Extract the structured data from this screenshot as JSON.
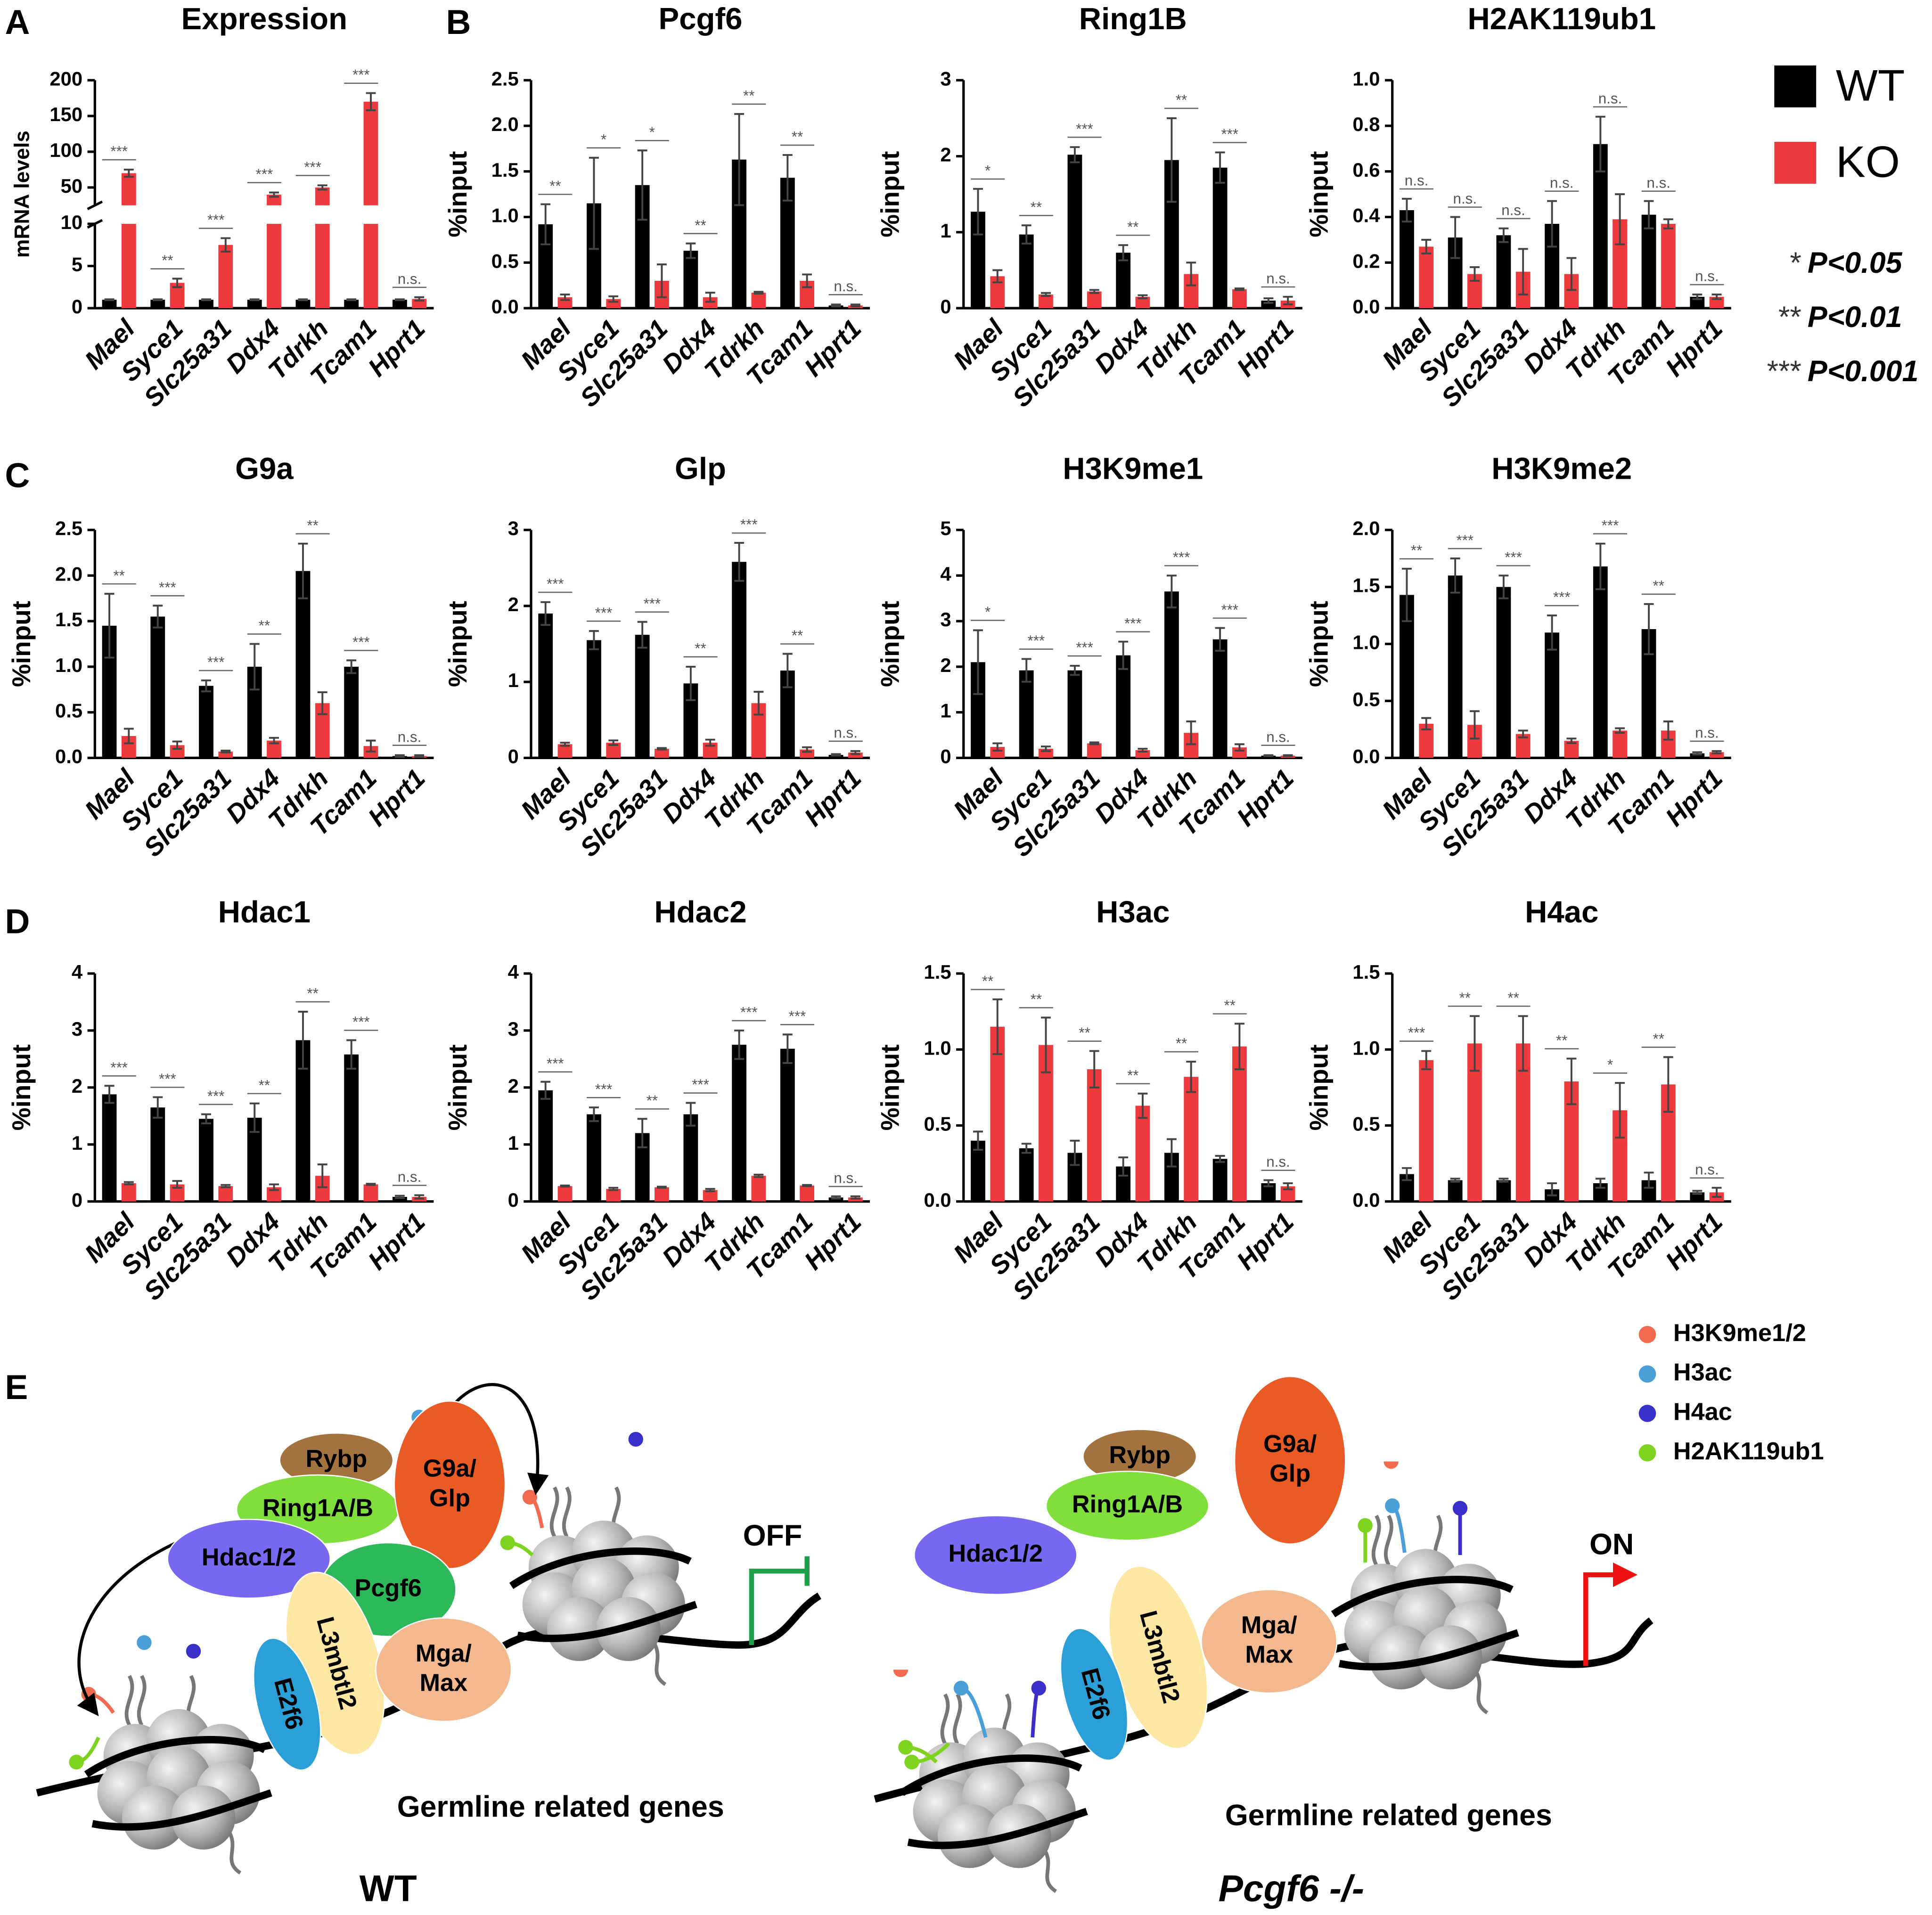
{
  "panel_labels": [
    "A",
    "B",
    "C",
    "D",
    "E"
  ],
  "significance_legend": [
    {
      "stars": "*",
      "label": "P<0.05"
    },
    {
      "stars": "**",
      "label": "P<0.01"
    },
    {
      "stars": "***",
      "label": "P<0.001"
    }
  ],
  "chart_data": [
    {
      "type": "bar",
      "title": "Expression",
      "ylabel": "mRNA levels",
      "categories": [
        "Mael",
        "Syce1",
        "Slc25a31",
        "Ddx4",
        "Tdrkh",
        "Tcam1",
        "Hprt1"
      ],
      "series": [
        {
          "name": "WT",
          "color": "#000000",
          "values": [
            1,
            1,
            1,
            1,
            1,
            1,
            1
          ],
          "errors": [
            0.05,
            0.05,
            0.05,
            0.05,
            0.05,
            0.05,
            0.05
          ]
        },
        {
          "name": "KO",
          "color": "#ef3a3d",
          "values": [
            70,
            3,
            7.5,
            40,
            50,
            170,
            1.1
          ],
          "errors": [
            5,
            0.5,
            0.8,
            3,
            3,
            12,
            0.2
          ]
        }
      ],
      "significance": [
        "***",
        "**",
        "***",
        "***",
        "***",
        "***",
        "n.s."
      ],
      "ylim": [
        0,
        200
      ],
      "y_break": [
        10,
        25
      ],
      "yticks": [
        0,
        5,
        10,
        50,
        100,
        150,
        200
      ]
    },
    {
      "type": "bar",
      "title": "Pcgf6",
      "ylabel": "%input",
      "categories": [
        "Mael",
        "Syce1",
        "Slc25a31",
        "Ddx4",
        "Tdrkh",
        "Tcam1",
        "Hprt1"
      ],
      "series": [
        {
          "name": "WT",
          "color": "#000000",
          "values": [
            0.92,
            1.15,
            1.35,
            0.63,
            1.63,
            1.43,
            0.03
          ],
          "errors": [
            0.22,
            0.5,
            0.38,
            0.08,
            0.5,
            0.25,
            0.01
          ]
        },
        {
          "name": "KO",
          "color": "#ef3a3d",
          "values": [
            0.12,
            0.1,
            0.3,
            0.12,
            0.17,
            0.3,
            0.03
          ],
          "errors": [
            0.03,
            0.03,
            0.18,
            0.05,
            0.01,
            0.07,
            0.01
          ]
        }
      ],
      "significance": [
        "**",
        "*",
        "*",
        "**",
        "**",
        "**",
        "n.s."
      ],
      "ylim": [
        0,
        2.5
      ],
      "yticks": [
        {
          "value": 0,
          "label": "0.0"
        },
        0.5,
        {
          "value": 1,
          "label": "1.0"
        },
        1.5,
        {
          "value": 2,
          "label": "2.0"
        },
        2.5
      ]
    },
    {
      "type": "bar",
      "title": "Ring1B",
      "ylabel": "%input",
      "categories": [
        "Mael",
        "Syce1",
        "Slc25a31",
        "Ddx4",
        "Tdrkh",
        "Tcam1",
        "Hprt1"
      ],
      "series": [
        {
          "name": "WT",
          "color": "#000000",
          "values": [
            1.27,
            0.97,
            2.02,
            0.73,
            1.95,
            1.85,
            0.1
          ],
          "errors": [
            0.3,
            0.12,
            0.1,
            0.1,
            0.55,
            0.2,
            0.03
          ]
        },
        {
          "name": "KO",
          "color": "#ef3a3d",
          "values": [
            0.42,
            0.18,
            0.22,
            0.15,
            0.45,
            0.25,
            0.1
          ],
          "errors": [
            0.08,
            0.02,
            0.02,
            0.02,
            0.15,
            0.01,
            0.05
          ]
        }
      ],
      "significance": [
        "*",
        "**",
        "***",
        "**",
        "**",
        "***",
        "n.s."
      ],
      "ylim": [
        0,
        3
      ],
      "yticks": [
        0,
        1,
        2,
        3
      ]
    },
    {
      "type": "bar",
      "title": "H2AK119ub1",
      "ylabel": "%input",
      "categories": [
        "Mael",
        "Syce1",
        "Slc25a31",
        "Ddx4",
        "Tdrkh",
        "Tcam1",
        "Hprt1"
      ],
      "series": [
        {
          "name": "WT",
          "color": "#000000",
          "values": [
            0.43,
            0.31,
            0.32,
            0.37,
            0.72,
            0.41,
            0.05
          ],
          "errors": [
            0.05,
            0.09,
            0.03,
            0.1,
            0.12,
            0.06,
            0.01
          ]
        },
        {
          "name": "KO",
          "color": "#ef3a3d",
          "values": [
            0.27,
            0.15,
            0.16,
            0.15,
            0.39,
            0.37,
            0.05
          ],
          "errors": [
            0.03,
            0.03,
            0.1,
            0.07,
            0.11,
            0.02,
            0.01
          ]
        }
      ],
      "significance": [
        "n.s.",
        "n.s.",
        "n.s.",
        "n.s.",
        "n.s.",
        "n.s.",
        "n.s."
      ],
      "ylim": [
        0,
        1
      ],
      "yticks": [
        {
          "value": 0,
          "label": "0.0"
        },
        0.2,
        0.4,
        0.6,
        0.8,
        {
          "value": 1,
          "label": "1.0"
        }
      ]
    },
    {
      "type": "bar",
      "title": "G9a",
      "ylabel": "%input",
      "categories": [
        "Mael",
        "Syce1",
        "Slc25a31",
        "Ddx4",
        "Tdrkh",
        "Tcam1",
        "Hprt1"
      ],
      "series": [
        {
          "name": "WT",
          "color": "#000000",
          "values": [
            1.45,
            1.55,
            0.79,
            1.0,
            2.05,
            1.0,
            0.02
          ],
          "errors": [
            0.35,
            0.12,
            0.06,
            0.25,
            0.3,
            0.07,
            0.01
          ]
        },
        {
          "name": "KO",
          "color": "#ef3a3d",
          "values": [
            0.24,
            0.14,
            0.07,
            0.19,
            0.6,
            0.13,
            0.02
          ],
          "errors": [
            0.08,
            0.04,
            0.01,
            0.03,
            0.12,
            0.06,
            0.01
          ]
        }
      ],
      "significance": [
        "**",
        "***",
        "***",
        "**",
        "**",
        "***",
        "n.s."
      ],
      "ylim": [
        0,
        2.5
      ],
      "yticks": [
        {
          "value": 0,
          "label": "0.0"
        },
        0.5,
        {
          "value": 1,
          "label": "1.0"
        },
        1.5,
        {
          "value": 2,
          "label": "2.0"
        },
        2.5
      ]
    },
    {
      "type": "bar",
      "title": "Glp",
      "ylabel": "%input",
      "categories": [
        "Mael",
        "Syce1",
        "Slc25a31",
        "Ddx4",
        "Tdrkh",
        "Tcam1",
        "Hprt1"
      ],
      "series": [
        {
          "name": "WT",
          "color": "#000000",
          "values": [
            1.9,
            1.55,
            1.62,
            0.98,
            2.58,
            1.15,
            0.04
          ],
          "errors": [
            0.15,
            0.12,
            0.17,
            0.22,
            0.25,
            0.22,
            0.01
          ]
        },
        {
          "name": "KO",
          "color": "#ef3a3d",
          "values": [
            0.18,
            0.2,
            0.12,
            0.2,
            0.72,
            0.11,
            0.07
          ],
          "errors": [
            0.02,
            0.03,
            0.01,
            0.04,
            0.15,
            0.03,
            0.02
          ]
        }
      ],
      "significance": [
        "***",
        "***",
        "***",
        "**",
        "***",
        "**",
        "n.s."
      ],
      "ylim": [
        0,
        3
      ],
      "yticks": [
        0,
        1,
        2,
        3
      ]
    },
    {
      "type": "bar",
      "title": "H3K9me1",
      "ylabel": "%input",
      "categories": [
        "Mael",
        "Syce1",
        "Slc25a31",
        "Ddx4",
        "Tdrkh",
        "Tcam1",
        "Hprt1"
      ],
      "series": [
        {
          "name": "WT",
          "color": "#000000",
          "values": [
            2.1,
            1.92,
            1.92,
            2.25,
            3.65,
            2.6,
            0.05
          ],
          "errors": [
            0.7,
            0.25,
            0.1,
            0.3,
            0.35,
            0.25,
            0.01
          ]
        },
        {
          "name": "KO",
          "color": "#ef3a3d",
          "values": [
            0.24,
            0.2,
            0.32,
            0.17,
            0.55,
            0.23,
            0.05
          ],
          "errors": [
            0.08,
            0.05,
            0.02,
            0.03,
            0.25,
            0.07,
            0.01
          ]
        }
      ],
      "significance": [
        "*",
        "***",
        "***",
        "***",
        "***",
        "***",
        "n.s."
      ],
      "ylim": [
        0,
        5
      ],
      "yticks": [
        0,
        1,
        2,
        3,
        4,
        5
      ]
    },
    {
      "type": "bar",
      "title": "H3K9me2",
      "ylabel": "%input",
      "categories": [
        "Mael",
        "Syce1",
        "Slc25a31",
        "Ddx4",
        "Tdrkh",
        "Tcam1",
        "Hprt1"
      ],
      "series": [
        {
          "name": "WT",
          "color": "#000000",
          "values": [
            1.43,
            1.6,
            1.5,
            1.1,
            1.68,
            1.13,
            0.04
          ],
          "errors": [
            0.23,
            0.15,
            0.1,
            0.15,
            0.2,
            0.22,
            0.01
          ]
        },
        {
          "name": "KO",
          "color": "#ef3a3d",
          "values": [
            0.3,
            0.29,
            0.21,
            0.15,
            0.24,
            0.24,
            0.05
          ],
          "errors": [
            0.05,
            0.12,
            0.03,
            0.02,
            0.02,
            0.08,
            0.01
          ]
        }
      ],
      "significance": [
        "**",
        "***",
        "***",
        "***",
        "***",
        "**",
        "n.s."
      ],
      "ylim": [
        0,
        2
      ],
      "yticks": [
        {
          "value": 0,
          "label": "0.0"
        },
        0.5,
        {
          "value": 1,
          "label": "1.0"
        },
        1.5,
        {
          "value": 2,
          "label": "2.0"
        }
      ]
    },
    {
      "type": "bar",
      "title": "Hdac1",
      "ylabel": "%input",
      "categories": [
        "Mael",
        "Syce1",
        "Slc25a31",
        "Ddx4",
        "Tdrkh",
        "Tcam1",
        "Hprt1"
      ],
      "series": [
        {
          "name": "WT",
          "color": "#000000",
          "values": [
            1.88,
            1.65,
            1.45,
            1.47,
            2.83,
            2.58,
            0.08
          ],
          "errors": [
            0.15,
            0.18,
            0.08,
            0.25,
            0.5,
            0.25,
            0.02
          ]
        },
        {
          "name": "KO",
          "color": "#ef3a3d",
          "values": [
            0.32,
            0.3,
            0.27,
            0.25,
            0.45,
            0.3,
            0.08
          ],
          "errors": [
            0.02,
            0.06,
            0.02,
            0.05,
            0.2,
            0.01,
            0.03
          ]
        }
      ],
      "significance": [
        "***",
        "***",
        "***",
        "**",
        "**",
        "***",
        "n.s."
      ],
      "ylim": [
        0,
        4
      ],
      "yticks": [
        0,
        1,
        2,
        3,
        4
      ]
    },
    {
      "type": "bar",
      "title": "Hdac2",
      "ylabel": "%input",
      "categories": [
        "Mael",
        "Syce1",
        "Slc25a31",
        "Ddx4",
        "Tdrkh",
        "Tcam1",
        "Hprt1"
      ],
      "series": [
        {
          "name": "WT",
          "color": "#000000",
          "values": [
            1.95,
            1.53,
            1.2,
            1.53,
            2.75,
            2.68,
            0.07
          ],
          "errors": [
            0.15,
            0.12,
            0.25,
            0.2,
            0.25,
            0.25,
            0.02
          ]
        },
        {
          "name": "KO",
          "color": "#ef3a3d",
          "values": [
            0.27,
            0.22,
            0.25,
            0.2,
            0.45,
            0.28,
            0.07
          ],
          "errors": [
            0.01,
            0.02,
            0.01,
            0.02,
            0.02,
            0.01,
            0.02
          ]
        }
      ],
      "significance": [
        "***",
        "***",
        "**",
        "***",
        "***",
        "***",
        "n.s."
      ],
      "ylim": [
        0,
        4
      ],
      "yticks": [
        0,
        1,
        2,
        3,
        4
      ]
    },
    {
      "type": "bar",
      "title": "H3ac",
      "ylabel": "%input",
      "categories": [
        "Mael",
        "Syce1",
        "Slc25a31",
        "Ddx4",
        "Tdrkh",
        "Tcam1",
        "Hprt1"
      ],
      "series": [
        {
          "name": "WT",
          "color": "#000000",
          "values": [
            0.4,
            0.35,
            0.32,
            0.23,
            0.32,
            0.28,
            0.12
          ],
          "errors": [
            0.06,
            0.03,
            0.08,
            0.06,
            0.09,
            0.02,
            0.02
          ]
        },
        {
          "name": "KO",
          "color": "#ef3a3d",
          "values": [
            1.15,
            1.03,
            0.87,
            0.63,
            0.82,
            1.02,
            0.1
          ],
          "errors": [
            0.18,
            0.18,
            0.12,
            0.08,
            0.1,
            0.15,
            0.02
          ]
        }
      ],
      "significance": [
        "**",
        "**",
        "**",
        "**",
        "**",
        "**",
        "n.s."
      ],
      "ylim": [
        0,
        1.5
      ],
      "yticks": [
        {
          "value": 0,
          "label": "0.0"
        },
        0.5,
        {
          "value": 1,
          "label": "1.0"
        },
        1.5
      ]
    },
    {
      "type": "bar",
      "title": "H4ac",
      "ylabel": "%input",
      "categories": [
        "Mael",
        "Syce1",
        "Slc25a31",
        "Ddx4",
        "Tdrkh",
        "Tcam1",
        "Hprt1"
      ],
      "series": [
        {
          "name": "WT",
          "color": "#000000",
          "values": [
            0.18,
            0.14,
            0.14,
            0.08,
            0.12,
            0.14,
            0.06
          ],
          "errors": [
            0.04,
            0.01,
            0.01,
            0.04,
            0.03,
            0.05,
            0.01
          ]
        },
        {
          "name": "KO",
          "color": "#ef3a3d",
          "values": [
            0.93,
            1.04,
            1.04,
            0.79,
            0.6,
            0.77,
            0.06
          ],
          "errors": [
            0.06,
            0.18,
            0.18,
            0.15,
            0.18,
            0.18,
            0.03
          ]
        }
      ],
      "significance": [
        "***",
        "**",
        "**",
        "**",
        "*",
        "**",
        "n.s."
      ],
      "ylim": [
        0,
        1.5
      ],
      "yticks": [
        {
          "value": 0,
          "label": "0.0"
        },
        0.5,
        {
          "value": 1,
          "label": "1.0"
        },
        1.5
      ]
    }
  ],
  "diagram": {
    "marks_legend": [
      "H3K9me1/2",
      "H3ac",
      "H4ac",
      "H2AK119ub1"
    ],
    "wt": {
      "proteins": [
        [
          "Rybp"
        ],
        [
          "Ring1A/B"
        ],
        [
          "G9a/",
          "Glp"
        ],
        [
          "Hdac1/2"
        ],
        [
          "Pcgf6"
        ],
        [
          "L3mbtl2"
        ],
        [
          "E2f6"
        ],
        [
          "Mga/",
          "Max"
        ]
      ],
      "switch": "OFF",
      "genes": "Germline related genes",
      "label": "WT"
    },
    "ko": {
      "proteins": [
        [
          "Rybp"
        ],
        [
          "Ring1A/B"
        ],
        [
          "G9a/",
          "Glp"
        ],
        [
          "Hdac1/2"
        ],
        [
          "L3mbtl2"
        ],
        [
          "E2f6"
        ],
        [
          "Mga/",
          "Max"
        ]
      ],
      "switch": "ON",
      "genes": "Germline related genes",
      "label": "Pcgf6 -/-"
    }
  }
}
